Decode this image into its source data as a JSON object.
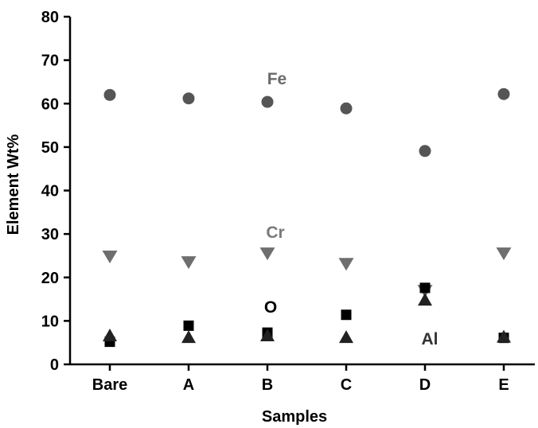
{
  "chart_data": {
    "type": "scatter",
    "categories": [
      "Bare",
      "A",
      "B",
      "C",
      "D",
      "E"
    ],
    "xlabel": "Samples",
    "ylabel": "Element Wt%",
    "ylim": [
      0,
      80
    ],
    "yticks": [
      "0",
      "10",
      "20",
      "30",
      "40",
      "50",
      "60",
      "70",
      "80"
    ],
    "grid": false,
    "series": [
      {
        "name": "Fe",
        "marker": "circle",
        "color": "#555555",
        "values": [
          62,
          61.2,
          60.4,
          58.9,
          49.1,
          62.2
        ]
      },
      {
        "name": "Cr",
        "marker": "triangle-down",
        "color": "#6e6e6e",
        "values": [
          24.9,
          23.6,
          25.6,
          23.2,
          17.0,
          25.6
        ]
      },
      {
        "name": "O",
        "marker": "square",
        "color": "#000000",
        "values": [
          5.2,
          8.9,
          7.3,
          11.4,
          17.6,
          6.1
        ]
      },
      {
        "name": "Al",
        "marker": "triangle-up",
        "color": "#222222",
        "values": [
          6.6,
          6.2,
          6.6,
          6.2,
          14.8,
          6.3
        ]
      }
    ]
  }
}
